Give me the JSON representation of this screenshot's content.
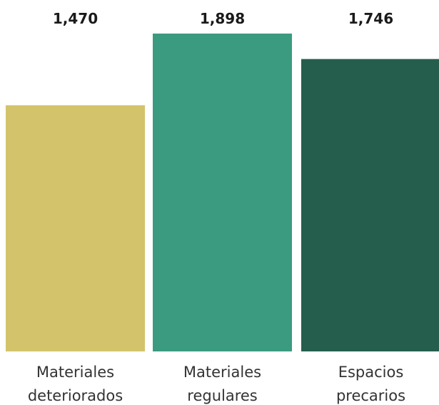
{
  "chart_data": {
    "type": "bar",
    "categories": [
      [
        "Materiales",
        "deteriorados"
      ],
      [
        "Materiales",
        "regulares"
      ],
      [
        "Espacios",
        "precarios"
      ]
    ],
    "values": [
      1470,
      1898,
      1746
    ],
    "value_labels": [
      "1,470",
      "1,898",
      "1,746"
    ],
    "colors": [
      "#D3C46C",
      "#3B9B80",
      "#255E4D"
    ],
    "title": "",
    "xlabel": "",
    "ylabel": "",
    "ylim": [
      0,
      1898
    ],
    "grid": false,
    "legend": "none"
  }
}
